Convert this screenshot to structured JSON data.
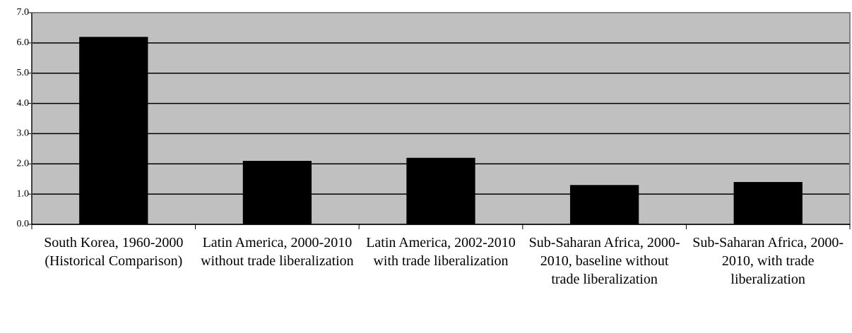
{
  "chart_data": {
    "type": "bar",
    "categories": [
      "South Korea, 1960-2000 (Historical Comparison)",
      "Latin America, 2000-2010 without trade liberalization",
      "Latin America, 2002-2010 with trade liberalization",
      "Sub-Saharan Africa, 2000-2010, baseline without trade liberalization",
      "Sub-Saharan Africa, 2000-2010, with trade liberalization"
    ],
    "values": [
      6.2,
      2.1,
      2.2,
      1.3,
      1.4
    ],
    "color": "#000000",
    "ylim": [
      0,
      7
    ],
    "yticks": [
      {
        "value": 0,
        "label": "0.0"
      },
      {
        "value": 1,
        "label": "1.0"
      },
      {
        "value": 2,
        "label": "2.0"
      },
      {
        "value": 3,
        "label": "3.0"
      },
      {
        "value": 4,
        "label": "4.0"
      },
      {
        "value": 5,
        "label": "5.0"
      },
      {
        "value": 6,
        "label": "6.0"
      },
      {
        "value": 7,
        "label": "7.0"
      }
    ],
    "grid": true
  }
}
